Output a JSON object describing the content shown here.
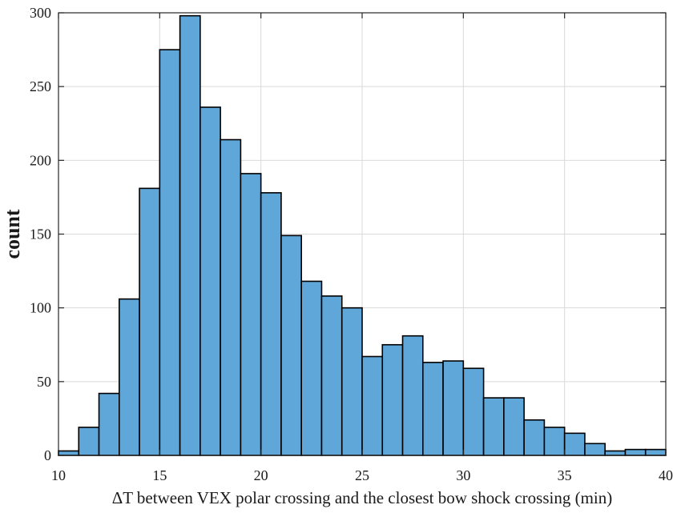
{
  "chart_data": {
    "type": "bar",
    "subtype": "histogram",
    "title": "",
    "xlabel": "ΔT between VEX polar crossing and the closest bow shock crossing (min)",
    "ylabel": "count",
    "xlim": [
      10,
      40
    ],
    "ylim": [
      0,
      300
    ],
    "x_ticks": [
      "10",
      "15",
      "20",
      "25",
      "30",
      "35",
      "40"
    ],
    "y_ticks": [
      "0",
      "50",
      "100",
      "150",
      "200",
      "250",
      "300"
    ],
    "grid": true,
    "bin_width": 1,
    "bin_edges_start": 10,
    "values": [
      3,
      19,
      42,
      106,
      181,
      275,
      298,
      236,
      214,
      191,
      178,
      149,
      118,
      108,
      100,
      67,
      75,
      81,
      63,
      64,
      59,
      39,
      39,
      24,
      19,
      15,
      8,
      3,
      4,
      4
    ],
    "bar_color": "#5fa7d8",
    "edge_color": "#000000"
  }
}
